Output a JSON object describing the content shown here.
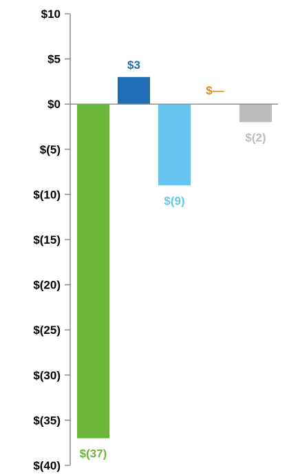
{
  "chart_data": {
    "type": "bar",
    "categories": [
      "",
      "",
      "",
      "",
      ""
    ],
    "values": [
      -37,
      3,
      -9,
      0,
      -2
    ],
    "data_labels": [
      "$(37)",
      "$3",
      "$(9)",
      "$—",
      "$(2)"
    ],
    "colors": [
      "#6ab63a",
      "#1f6db5",
      "#66c5ef",
      "#e08b22",
      "#bcbcbc"
    ],
    "ylim": [
      -40,
      10
    ],
    "yticks": [
      10,
      5,
      0,
      -5,
      -10,
      -15,
      -20,
      -25,
      -30,
      -35,
      -40
    ],
    "ytick_labels": [
      "$10",
      "$5",
      "$0",
      "$(5)",
      "$(10)",
      "$(15)",
      "$(20)",
      "$(25)",
      "$(30)",
      "$(35)",
      "$(40)"
    ],
    "title": "",
    "xlabel": "",
    "ylabel": "",
    "grid": false,
    "legend": "none"
  }
}
